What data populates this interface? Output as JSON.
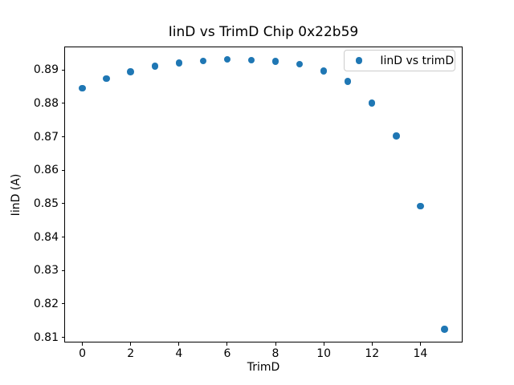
{
  "chart_data": {
    "type": "scatter",
    "title": "IinD vs TrimD Chip 0x22b59",
    "xlabel": "TrimD",
    "ylabel": "IinD (A)",
    "legend": {
      "label": "IinD vs trimD",
      "position": "upper right"
    },
    "marker_color": "#1f77b4",
    "x": [
      0,
      1,
      2,
      3,
      4,
      5,
      6,
      7,
      8,
      9,
      10,
      11,
      12,
      13,
      14,
      15
    ],
    "y": [
      0.8845,
      0.8874,
      0.8894,
      0.8911,
      0.8921,
      0.8927,
      0.8931,
      0.8929,
      0.8926,
      0.8917,
      0.8897,
      0.8866,
      0.8801,
      0.8702,
      0.8492,
      0.8124
    ],
    "xlim": [
      -0.75,
      15.75
    ],
    "ylim": [
      0.8084,
      0.8971
    ],
    "xticks": [
      0,
      2,
      4,
      6,
      8,
      10,
      12,
      14
    ],
    "xtick_labels": [
      "0",
      "2",
      "4",
      "6",
      "8",
      "10",
      "12",
      "14"
    ],
    "yticks": [
      0.81,
      0.82,
      0.83,
      0.84,
      0.85,
      0.86,
      0.87,
      0.88,
      0.89
    ],
    "ytick_labels": [
      "0.81",
      "0.82",
      "0.83",
      "0.84",
      "0.85",
      "0.86",
      "0.87",
      "0.88",
      "0.89"
    ],
    "grid": false
  }
}
